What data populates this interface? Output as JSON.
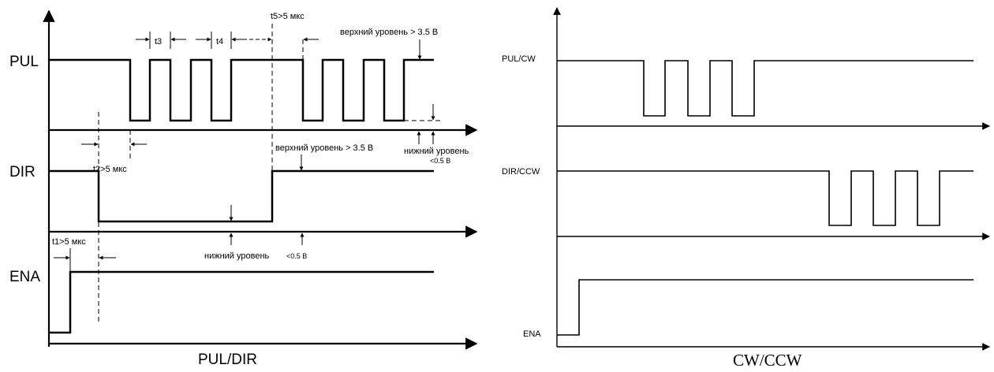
{
  "left_diagram": {
    "signals": {
      "pul": "PUL",
      "dir": "DIR",
      "ena": "ENA"
    },
    "labels": {
      "t3": "t3",
      "t4": "t4",
      "t5": "t5>5 мкс",
      "t2": "t2>5 мкс",
      "t1": "t1>5 мкс",
      "pul_high": "верхний уровень > 3.5 В",
      "pul_low": "нижний уровень",
      "pul_low_val": "<0.5 В",
      "dir_high": "верхний уровень > 3.5 В",
      "dir_low": "нижний уровень",
      "dir_low_val": "<0.5 В"
    },
    "title": "PUL/DIR"
  },
  "right_diagram": {
    "signals": {
      "pul_cw": "PUL/CW",
      "dir_ccw": "DIR/CCW",
      "ena": "ENA"
    },
    "title": "CW/CCW"
  }
}
